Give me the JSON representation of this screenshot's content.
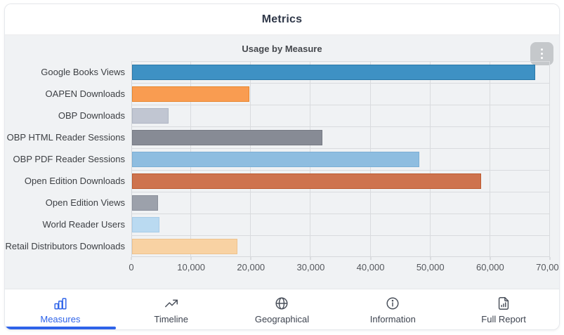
{
  "window": {
    "title": "Metrics"
  },
  "chart": {
    "title": "Usage by Measure",
    "menu_icon": "kebab-menu-icon"
  },
  "chart_data": {
    "type": "bar",
    "orientation": "horizontal",
    "title": "Usage by Measure",
    "categories": [
      "Google Books Views",
      "OAPEN Downloads",
      "OBP Downloads",
      "OBP HTML Reader Sessions",
      "OBP PDF Reader Sessions",
      "Open Edition Downloads",
      "Open Edition Views",
      "World Reader Users",
      "Retail Distributors Downloads"
    ],
    "values": [
      67500,
      19600,
      6100,
      31900,
      48100,
      58500,
      4300,
      4600,
      17600
    ],
    "bar_colors": [
      "#3e91c4",
      "#f99c51",
      "#c1c6d2",
      "#878b95",
      "#8ebde0",
      "#ce734e",
      "#9ca1ab",
      "#badaf1",
      "#f8d2a3"
    ],
    "bar_border_colors": [
      "#2a78a8",
      "#e8872e",
      "#b0b6c4",
      "#767a84",
      "#7cafd5",
      "#bc5a30",
      "#8b909b",
      "#a8cce8",
      "#eec28e"
    ],
    "xlim": [
      0,
      70000
    ],
    "x_ticks": [
      0,
      10000,
      20000,
      30000,
      40000,
      50000,
      60000,
      70000
    ],
    "x_tick_labels": [
      "0",
      "10,000",
      "20,000",
      "30,000",
      "40,000",
      "50,000",
      "60,000",
      "70,000"
    ],
    "grid": true,
    "legend": false
  },
  "tabs": [
    {
      "label": "Measures",
      "icon": "bar-chart-icon",
      "active": true
    },
    {
      "label": "Timeline",
      "icon": "trend-up-icon",
      "active": false
    },
    {
      "label": "Geographical",
      "icon": "globe-icon",
      "active": false
    },
    {
      "label": "Information",
      "icon": "info-circle-icon",
      "active": false
    },
    {
      "label": "Full Report",
      "icon": "report-document-icon",
      "active": false
    }
  ],
  "colors": {
    "accent": "#2e63e9",
    "chart_background": "#f0f2f4",
    "grid_line": "#d9dbde",
    "kebab_background": "#c5c8cb",
    "header_text": "#303849"
  }
}
